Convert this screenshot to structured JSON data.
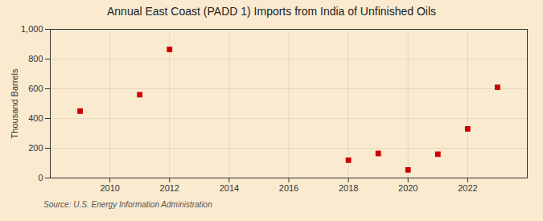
{
  "chart_data": {
    "type": "scatter",
    "title": "Annual East Coast (PADD 1) Imports from India of Unfinished Oils",
    "ylabel": "Thousand Barrels",
    "source": "Source: U.S. Energy Information Administration",
    "x": [
      2009,
      2011,
      2012,
      2018,
      2019,
      2020,
      2021,
      2022,
      2023
    ],
    "values": [
      450,
      560,
      865,
      120,
      165,
      55,
      160,
      330,
      610
    ],
    "color": "#cc0000",
    "marker": "square",
    "xlim": [
      2008,
      2024
    ],
    "xticks": [
      2010,
      2012,
      2014,
      2016,
      2018,
      2020,
      2022
    ],
    "ylim": [
      0,
      1000
    ],
    "yticks": [
      0,
      200,
      400,
      600,
      800,
      {
        "value": 1000,
        "label": "1,000"
      }
    ],
    "grid": true
  }
}
